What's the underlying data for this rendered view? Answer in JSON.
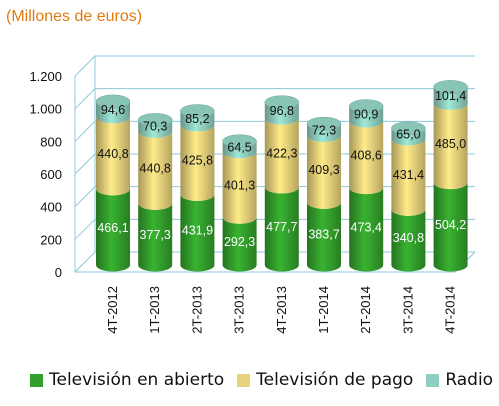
{
  "chart_data": {
    "type": "bar",
    "stacked": true,
    "title": "(Millones de euros)",
    "categories": [
      "4T-2012",
      "1T-2013",
      "2T-2013",
      "3T-2013",
      "4T-2013",
      "1T-2014",
      "2T-2014",
      "3T-2014",
      "4T-2014"
    ],
    "series": [
      {
        "name": "Televisión en abierto",
        "color": "#33A02C",
        "values": [
          466.1,
          377.3,
          431.9,
          292.3,
          477.7,
          383.7,
          473.4,
          340.8,
          504.2
        ],
        "labels": [
          "466,1",
          "377,3",
          "431,9",
          "292,3",
          "477,7",
          "383,7",
          "473,4",
          "340,8",
          "504,2"
        ]
      },
      {
        "name": "Televisión de pago",
        "color": "#E8D27A",
        "values": [
          440.8,
          440.8,
          425.8,
          401.3,
          422.3,
          409.3,
          408.6,
          431.4,
          485.0
        ],
        "labels": [
          "440,8",
          "440,8",
          "425,8",
          "401,3",
          "422,3",
          "409,3",
          "408,6",
          "431,4",
          "485,0"
        ]
      },
      {
        "name": "Radio",
        "color": "#8FCFC0",
        "values": [
          94.6,
          70.3,
          85.2,
          64.5,
          96.8,
          72.3,
          90.9,
          65.0,
          101.4
        ],
        "labels": [
          "94,6",
          "70,3",
          "85,2",
          "64,5",
          "96,8",
          "72,3",
          "90,9",
          "65,0",
          "101,4"
        ]
      }
    ],
    "ylim": [
      0,
      1200
    ],
    "yticks": [
      0,
      200,
      400,
      600,
      800,
      1000,
      1200
    ],
    "ytick_labels": [
      "0",
      "200",
      "400",
      "600",
      "800",
      "1.000",
      "1.200"
    ],
    "grid": true,
    "legend_position": "bottom",
    "xlabel": "",
    "ylabel": ""
  }
}
